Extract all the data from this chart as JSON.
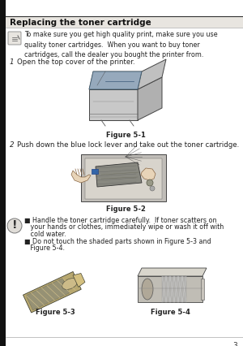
{
  "bg_color": "#ffffff",
  "page_bg": "#f8f8f8",
  "title": "Replacing the toner cartridge",
  "title_fontsize": 7.5,
  "note1_text": "To make sure you get high quality print, make sure you use\nquality toner cartridges.  When you want to buy toner\ncartridges, call the dealer you bought the printer from.",
  "step1_num": "1",
  "step1_text": "Open the top cover of the printer.",
  "fig1_label": "Figure 5-1",
  "step2_num": "2",
  "step2_text": "Push down the blue lock lever and take out the toner cartridge.",
  "fig2_label": "Figure 5-2",
  "warn1": "■ Handle the toner cartridge carefully.  If toner scatters on",
  "warn2": "   your hands or clothes, immediately wipe or wash it off with",
  "warn3": "   cold water.",
  "warn4": "■ Do not touch the shaded parts shown in Figure 5-3 and",
  "warn5": "   Figure 5-4.",
  "fig3_label": "Figure 5-3",
  "fig4_label": "Figure 5-4",
  "text_color": "#222222",
  "body_fontsize": 6.2,
  "small_fontsize": 5.8,
  "fig_label_fontsize": 6.0,
  "left_border_color": "#222222",
  "title_bg": "#e0ddd8",
  "border_top_color": "#000000"
}
